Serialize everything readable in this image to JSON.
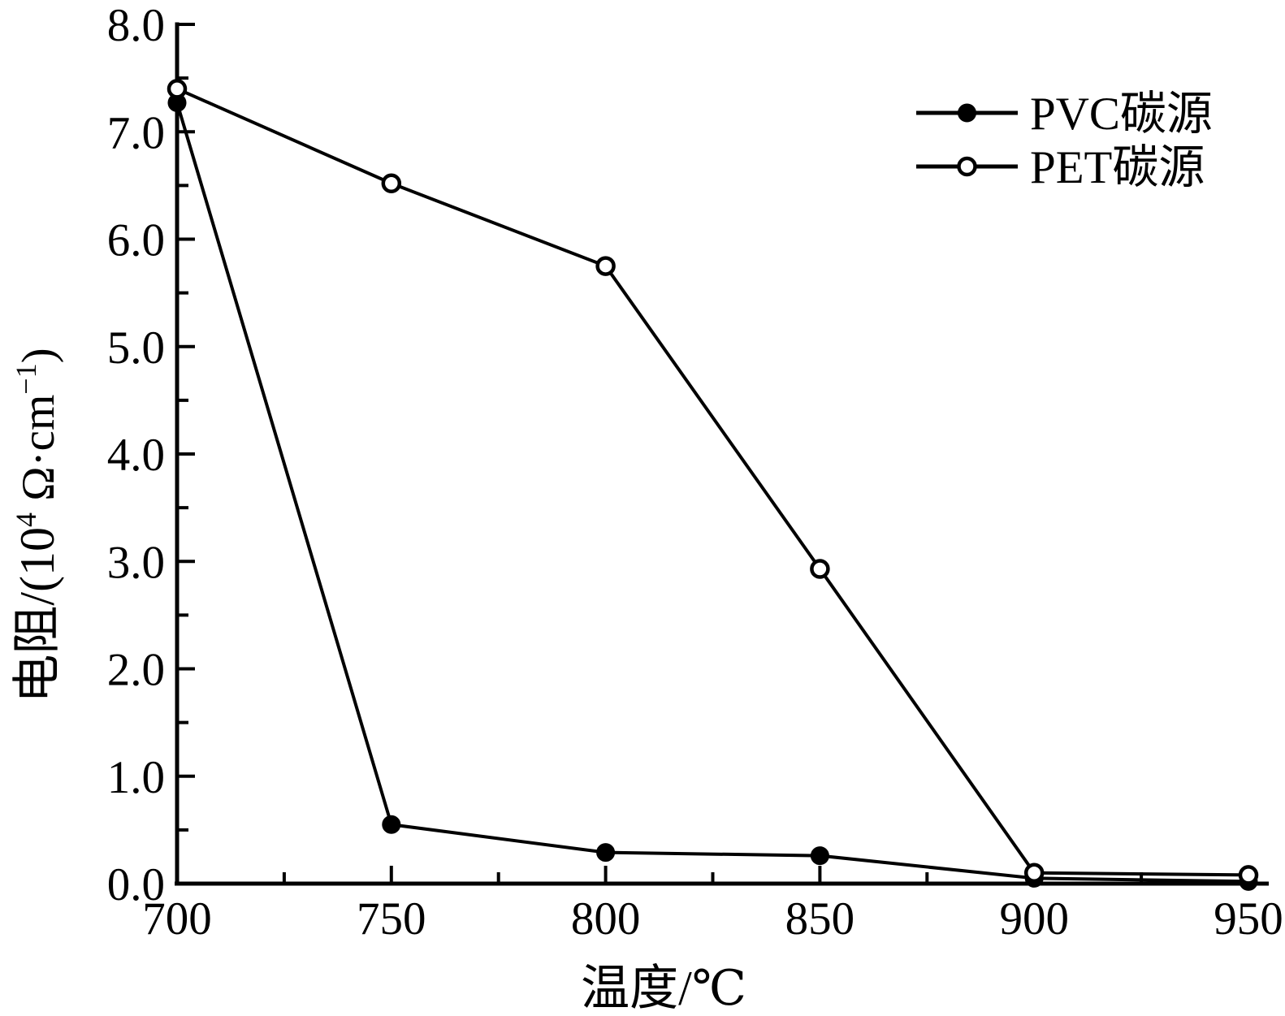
{
  "chart_data": {
    "type": "line",
    "title": "",
    "xlabel": "温度/℃",
    "ylabel": "电阻/(10⁴ Ω·cm⁻¹)",
    "ylabel_parts": {
      "prefix": "电阻/(10",
      "sup1": "4",
      "mid": " Ω·cm",
      "sup2": "−1",
      "close": ")"
    },
    "x": [
      700,
      750,
      800,
      850,
      900,
      950
    ],
    "x_tick_labels": [
      "700",
      "750",
      "800",
      "850",
      "900",
      "950"
    ],
    "x_minor_ticks": [
      725,
      775,
      825,
      875,
      925
    ],
    "xlim": [
      700,
      950
    ],
    "y_ticks": [
      0,
      1,
      2,
      3,
      4,
      5,
      6,
      7,
      8
    ],
    "y_tick_labels": [
      "0.0",
      "1.0",
      "2.0",
      "3.0",
      "4.0",
      "5.0",
      "6.0",
      "7.0",
      "8.0"
    ],
    "y_minor_ticks": [
      0.5,
      1.5,
      2.5,
      3.5,
      4.5,
      5.5,
      6.5,
      7.5
    ],
    "ylim": [
      0,
      8
    ],
    "grid": false,
    "legend_position": "top-right",
    "series": [
      {
        "name": "PVC碳源",
        "marker": "filled-circle",
        "values": [
          7.27,
          0.55,
          0.29,
          0.26,
          0.05,
          0.02
        ]
      },
      {
        "name": "PET碳源",
        "marker": "open-circle",
        "values": [
          7.4,
          6.52,
          5.75,
          2.93,
          0.1,
          0.08
        ]
      }
    ],
    "colors": {
      "line": "#000000",
      "background": "#ffffff",
      "open_marker_fill": "#ffffff"
    }
  }
}
